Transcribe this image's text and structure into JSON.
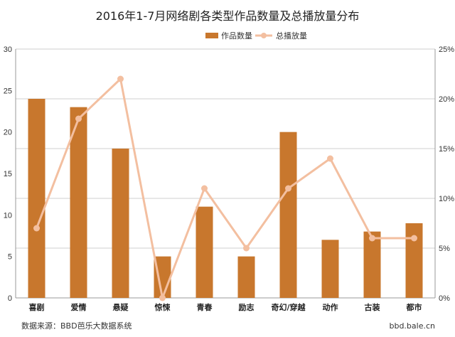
{
  "chart_data": {
    "type": "bar",
    "title": "2016年1-7月网络剧各类型作品数量及总播放量分布",
    "categories": [
      "喜剧",
      "爱情",
      "悬疑",
      "惊悚",
      "青春",
      "励志",
      "奇幻/穿越",
      "动作",
      "古装",
      "都市"
    ],
    "series": [
      {
        "name": "作品数量",
        "type": "bar",
        "axis": "left",
        "values": [
          24,
          23,
          18,
          5,
          11,
          5,
          20,
          7,
          8,
          9
        ]
      },
      {
        "name": "总播放量",
        "type": "line",
        "axis": "right",
        "values": [
          7,
          18,
          22,
          0,
          11,
          5,
          11,
          14,
          6,
          6
        ]
      }
    ],
    "ylim": [
      0,
      30
    ],
    "yticks": [
      "0",
      "5",
      "10",
      "15",
      "20",
      "25",
      "30"
    ],
    "y2lim": [
      0,
      25
    ],
    "y2ticks": [
      "0%",
      "5%",
      "10%",
      "15%",
      "20%",
      "25%"
    ],
    "grid": true,
    "legend_position": "top-right",
    "colors": {
      "bar": "#c8772d",
      "line": "#f3bfa0",
      "grid": "#cfcfcf",
      "axis": "#999999"
    }
  },
  "footer": {
    "source": "数据来源：BBD芭乐大数据系统",
    "site": "bbd.bale.cn"
  }
}
